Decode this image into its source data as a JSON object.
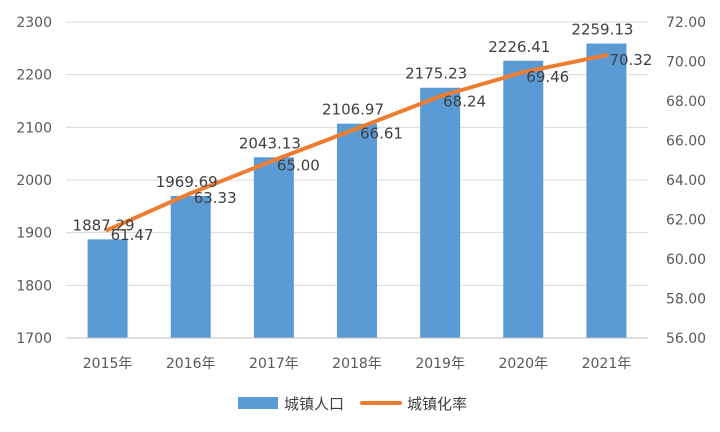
{
  "chart_data": {
    "type": "bar",
    "categories": [
      "2015年",
      "2016年",
      "2017年",
      "2018年",
      "2019年",
      "2020年",
      "2021年"
    ],
    "series": [
      {
        "name": "城镇人口",
        "type": "bar",
        "axis": "left",
        "values": [
          1887.29,
          1969.69,
          2043.13,
          2106.97,
          2175.23,
          2226.41,
          2259.13
        ],
        "labels": [
          "1887.29",
          "1969.69",
          "2043.13",
          "2106.97",
          "2175.23",
          "2226.41",
          "2259.13"
        ],
        "color": "#5B9BD5"
      },
      {
        "name": "城镇化率",
        "type": "line",
        "axis": "right",
        "values": [
          61.47,
          63.33,
          65.0,
          66.61,
          68.24,
          69.46,
          70.32
        ],
        "labels": [
          "61.47",
          "63.33",
          "65.00",
          "66.61",
          "68.24",
          "69.46",
          "70.32"
        ],
        "color": "#ED7D31"
      }
    ],
    "y_left": {
      "min": 1700,
      "max": 2300,
      "ticks": [
        "1700",
        "1800",
        "1900",
        "2000",
        "2100",
        "2200",
        "2300"
      ]
    },
    "y_right": {
      "min": 56,
      "max": 72,
      "ticks": [
        "56.00",
        "58.00",
        "60.00",
        "62.00",
        "64.00",
        "66.00",
        "68.00",
        "70.00",
        "72.00"
      ]
    },
    "grid": true,
    "legend_position": "bottom"
  }
}
